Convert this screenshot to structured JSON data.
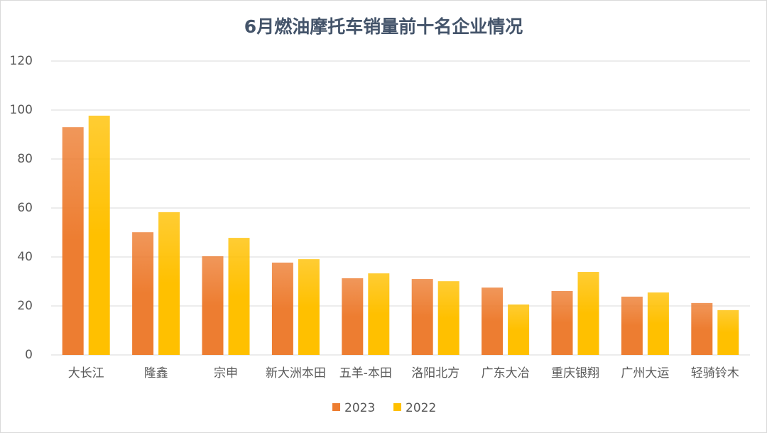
{
  "chart_data": {
    "type": "bar",
    "title": "6月燃油摩托车销量前十名企业情况",
    "categories": [
      "大长江",
      "隆鑫",
      "宗申",
      "新大洲本田",
      "五羊-本田",
      "洛阳北方",
      "广东大冶",
      "重庆银翔",
      "广州大运",
      "轻骑铃木"
    ],
    "series": [
      {
        "name": "2023",
        "color": "#ed7d31",
        "values": [
          93.0,
          50.1,
          40.3,
          37.7,
          31.3,
          31.0,
          27.5,
          26.1,
          23.8,
          21.2
        ]
      },
      {
        "name": "2022",
        "color": "#ffc000",
        "values": [
          97.7,
          58.3,
          47.8,
          39.1,
          33.3,
          30.1,
          20.6,
          33.9,
          25.5,
          18.3
        ]
      }
    ],
    "ylim": [
      0,
      120
    ],
    "yticks": [
      0,
      20,
      40,
      60,
      80,
      100,
      120
    ],
    "grid": true,
    "legend": "bottom"
  }
}
